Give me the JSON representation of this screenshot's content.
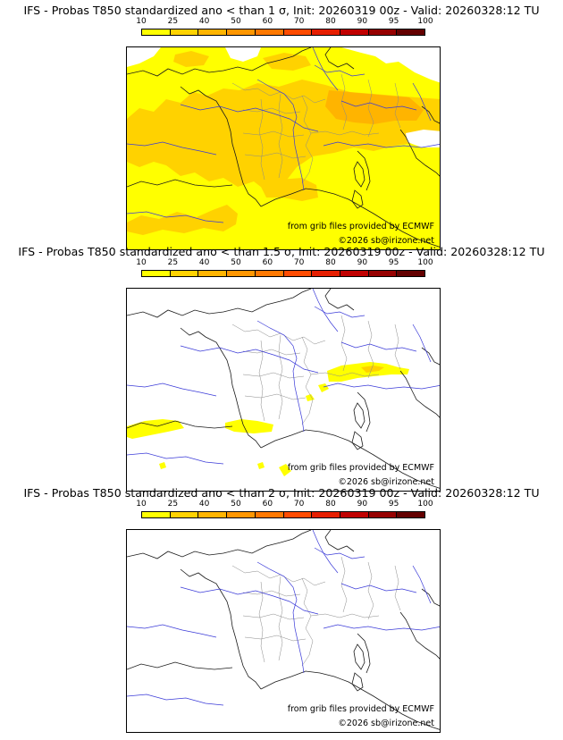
{
  "legend": {
    "ticks": [
      "10",
      "25",
      "40",
      "50",
      "60",
      "70",
      "80",
      "90",
      "95",
      "100"
    ],
    "colors": [
      "#ffff00",
      "#ffd200",
      "#ffb400",
      "#ff9600",
      "#ff7800",
      "#ff4b00",
      "#e61e00",
      "#c00000",
      "#960000",
      "#640000"
    ]
  },
  "panels": [
    {
      "title": "IFS - Probas T850  standardized ano < than 1 σ, Init: 20260319 00z - Valid: 20260328:12 TU",
      "credit": "from grib files provided by ECMWF",
      "copyright": "©2026 sb@irizone.net"
    },
    {
      "title": "IFS - Probas T850  standardized ano < than 1.5 σ, Init: 20260319 00z - Valid: 20260328:12 TU",
      "credit": "from grib files provided by ECMWF",
      "copyright": "©2026 sb@irizone.net"
    },
    {
      "title": "IFS - Probas T850  standardized ano < than 2 σ, Init: 20260319 00z - Valid: 20260328:12 TU",
      "credit": "from grib files provided by ECMWF",
      "copyright": "©2026 sb@irizone.net"
    }
  ]
}
